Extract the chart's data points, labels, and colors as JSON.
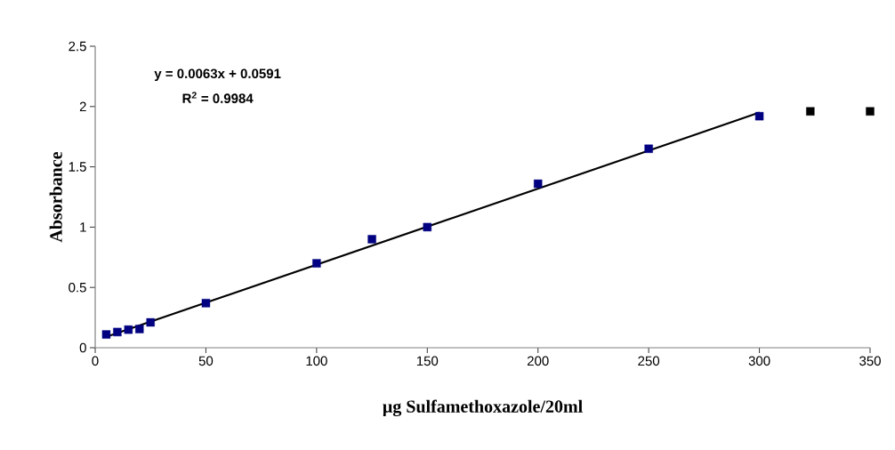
{
  "chart_data": {
    "type": "scatter",
    "xlabel": "µg Sulfamethoxazole/20ml",
    "ylabel": "Absorbance",
    "annotations": [
      "y = 0.0063x + 0.0591",
      "R$^{2}$ = 0.9984"
    ],
    "marker": "square",
    "grid": false,
    "xlim": [
      0,
      350
    ],
    "xticks": [
      0,
      50,
      100,
      150,
      200,
      250,
      300,
      350
    ],
    "ylim": [
      0,
      2.5
    ],
    "yticks": [
      0,
      0.5,
      1,
      1.5,
      2,
      2.5
    ],
    "series": [
      {
        "color": "#000080",
        "x": [
          5,
          10,
          15,
          20,
          25,
          50,
          100,
          125,
          150,
          200,
          250,
          300
        ],
        "values": [
          0.11,
          0.13,
          0.15,
          0.155,
          0.21,
          0.37,
          0.7,
          0.9,
          1.0,
          1.36,
          1.65,
          1.92
        ]
      },
      {
        "color": "#000000",
        "x": [
          323,
          350
        ],
        "values": [
          1.96,
          1.96
        ]
      },
      {
        "type": "line",
        "marker": "none",
        "color": "#000000",
        "x": [
          5,
          300
        ],
        "values": [
          0.09,
          1.95
        ]
      }
    ]
  }
}
